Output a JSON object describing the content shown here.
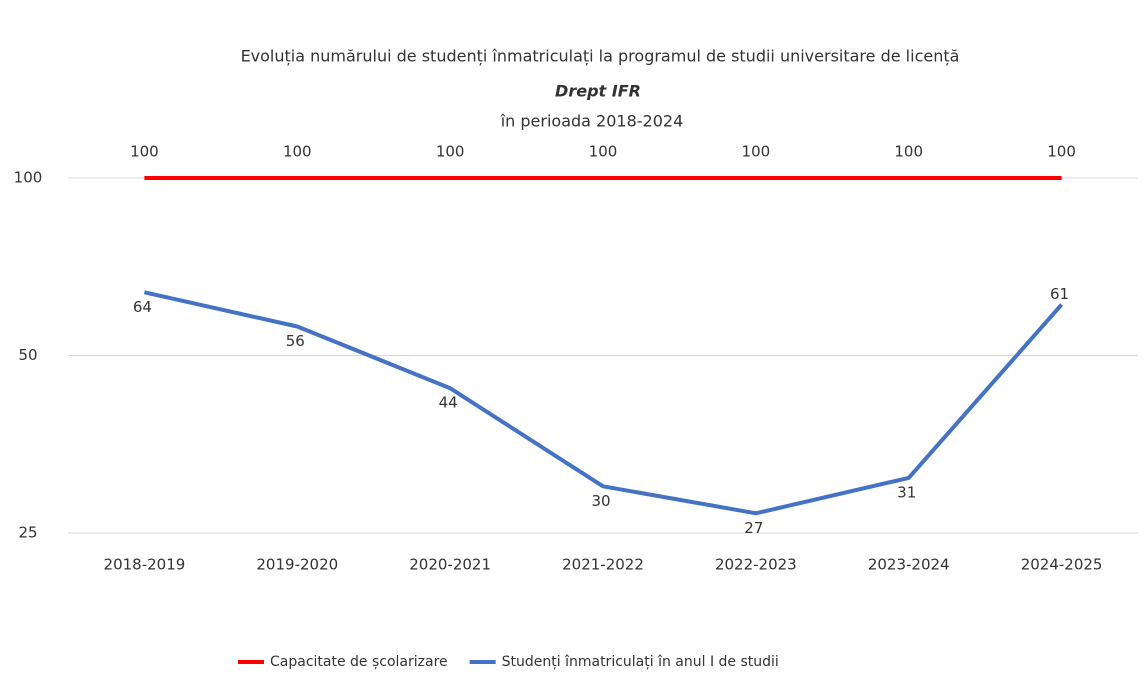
{
  "chart_data": {
    "type": "line",
    "title": [
      "Evoluția numărului de studenți înmatriculați la programul de studii universitare de licență",
      "Drept IFR",
      "în perioada 2018-2024"
    ],
    "categories": [
      "2018-2019",
      "2019-2020",
      "2020-2021",
      "2021-2022",
      "2022-2023",
      "2023-2024",
      "2024-2025"
    ],
    "series": [
      {
        "name": "Capacitate de școlarizare",
        "color": "#ff0000",
        "values": [
          100,
          100,
          100,
          100,
          100,
          100,
          100
        ]
      },
      {
        "name": "Studenți înmatriculați în anul I de studii",
        "color": "#4472c4",
        "values": [
          64,
          56,
          44,
          30,
          27,
          31,
          61
        ]
      }
    ],
    "ylim": [
      25,
      100
    ],
    "yticks": [
      25,
      50,
      100
    ],
    "log_scale": true,
    "grid": true,
    "legend": "bottom"
  }
}
